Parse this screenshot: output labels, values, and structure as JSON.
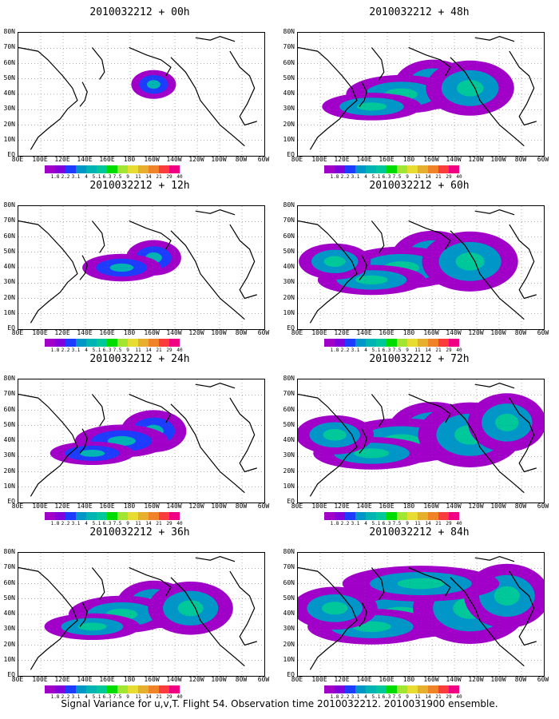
{
  "panels": [
    {
      "title": "2010032212 + 00h",
      "intensity": 0.15
    },
    {
      "title": "2010032212 + 12h",
      "intensity": 0.3
    },
    {
      "title": "2010032212 + 24h",
      "intensity": 0.45
    },
    {
      "title": "2010032212 + 36h",
      "intensity": 0.58
    },
    {
      "title": "2010032212 + 48h",
      "intensity": 0.62
    },
    {
      "title": "2010032212 + 60h",
      "intensity": 0.72
    },
    {
      "title": "2010032212 + 72h",
      "intensity": 0.82
    },
    {
      "title": "2010032212 + 84h",
      "intensity": 0.95
    }
  ],
  "lat_labels": [
    "80N",
    "70N",
    "60N",
    "50N",
    "40N",
    "30N",
    "20N",
    "10N",
    "EQ"
  ],
  "lon_labels": [
    "80E",
    "100E",
    "120E",
    "140E",
    "160E",
    "180",
    "160W",
    "140W",
    "120W",
    "100W",
    "80W",
    "60W"
  ],
  "colorbar": {
    "labels": [
      "1.8",
      "2.2",
      "3.1",
      "4",
      "5.1",
      "6.3",
      "7.5",
      "9",
      "11",
      "14",
      "21",
      "29",
      "40"
    ],
    "colors": [
      "#a000c8",
      "#8200dc",
      "#1e3cff",
      "#0096c8",
      "#00b4b4",
      "#00c89b",
      "#00dc00",
      "#a0e632",
      "#e6dc32",
      "#e6af2d",
      "#f08228",
      "#fa3c3c",
      "#f00082"
    ]
  },
  "footer": "Signal Variance for u,v,T. Flight 54. Observation time 2010032212. 2010031900 ensemble."
}
